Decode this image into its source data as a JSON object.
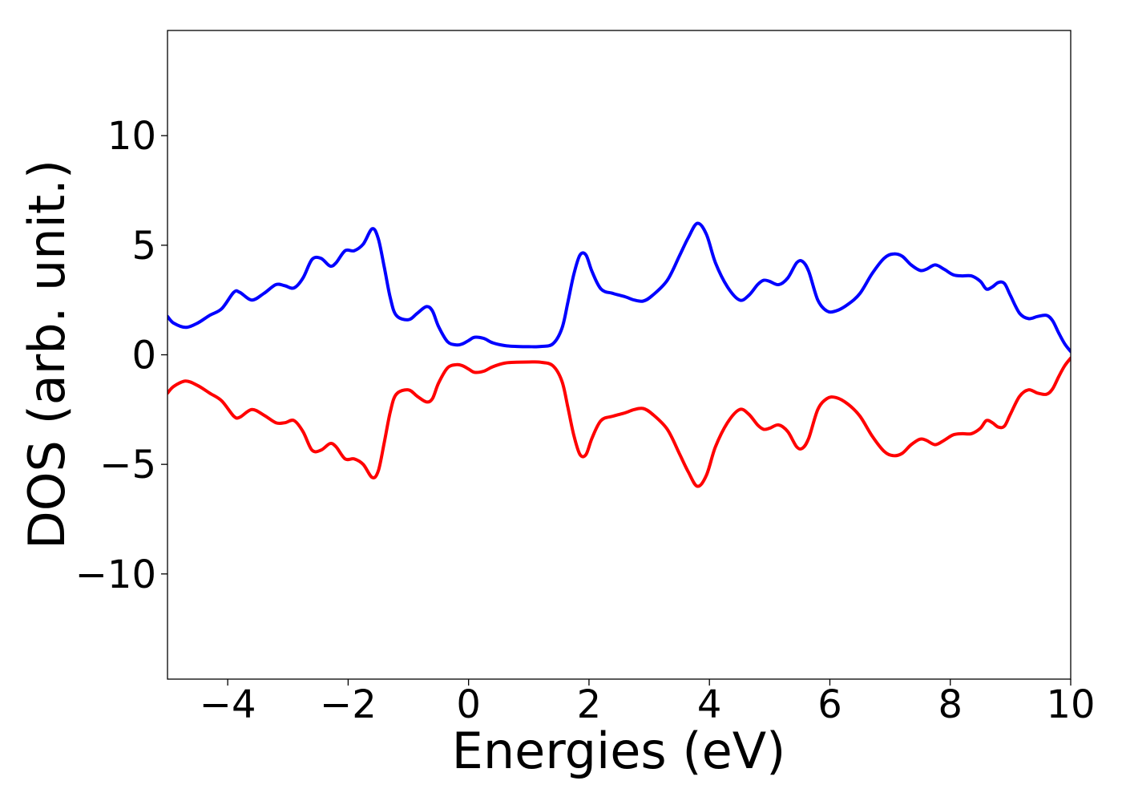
{
  "chart_data": {
    "type": "line",
    "title": "",
    "xlabel": "Energies (eV)",
    "ylabel": "DOS (arb. unit.)",
    "xlim": [
      -5,
      10
    ],
    "ylim": [
      -14.8,
      14.8
    ],
    "xticks": [
      -4,
      -2,
      0,
      2,
      4,
      6,
      8,
      10
    ],
    "xtick_labels": [
      "−4",
      "−2",
      "0",
      "2",
      "4",
      "6",
      "8",
      "10"
    ],
    "yticks": [
      -10,
      -5,
      0,
      5,
      10
    ],
    "ytick_labels": [
      "−10",
      "−5",
      "0",
      "5",
      "10"
    ],
    "grid": false,
    "legend": "none",
    "series": [
      {
        "color": "#0000ff",
        "x": [
          -5.0,
          -4.9,
          -4.7,
          -4.5,
          -4.3,
          -4.1,
          -3.9,
          -3.8,
          -3.6,
          -3.4,
          -3.2,
          -3.05,
          -2.9,
          -2.75,
          -2.6,
          -2.45,
          -2.3,
          -2.2,
          -2.05,
          -1.9,
          -1.75,
          -1.6,
          -1.5,
          -1.4,
          -1.3,
          -1.2,
          -1.0,
          -0.85,
          -0.7,
          -0.6,
          -0.5,
          -0.35,
          -0.2,
          -0.1,
          0.0,
          0.1,
          0.25,
          0.4,
          0.6,
          0.8,
          1.0,
          1.2,
          1.4,
          1.55,
          1.65,
          1.75,
          1.85,
          1.95,
          2.05,
          2.2,
          2.4,
          2.6,
          2.75,
          2.9,
          3.05,
          3.3,
          3.5,
          3.65,
          3.8,
          3.95,
          4.1,
          4.3,
          4.5,
          4.65,
          4.8,
          4.9,
          5.0,
          5.15,
          5.3,
          5.45,
          5.55,
          5.65,
          5.8,
          5.95,
          6.1,
          6.3,
          6.5,
          6.7,
          6.9,
          7.05,
          7.2,
          7.35,
          7.5,
          7.6,
          7.75,
          7.9,
          8.05,
          8.2,
          8.35,
          8.5,
          8.6,
          8.7,
          8.8,
          8.9,
          9.0,
          9.15,
          9.3,
          9.45,
          9.6,
          9.7,
          9.8,
          9.9,
          10.0
        ],
        "y": [
          1.75,
          1.45,
          1.25,
          1.45,
          1.8,
          2.1,
          2.85,
          2.85,
          2.5,
          2.8,
          3.2,
          3.15,
          3.05,
          3.5,
          4.35,
          4.4,
          4.05,
          4.2,
          4.75,
          4.75,
          5.05,
          5.75,
          5.3,
          4.0,
          2.6,
          1.8,
          1.6,
          1.9,
          2.2,
          2.0,
          1.3,
          0.6,
          0.45,
          0.5,
          0.65,
          0.8,
          0.75,
          0.55,
          0.42,
          0.38,
          0.37,
          0.38,
          0.5,
          1.2,
          2.4,
          3.7,
          4.55,
          4.55,
          3.8,
          3.0,
          2.8,
          2.65,
          2.5,
          2.45,
          2.7,
          3.4,
          4.5,
          5.35,
          6.0,
          5.5,
          4.2,
          3.1,
          2.5,
          2.7,
          3.2,
          3.4,
          3.35,
          3.2,
          3.5,
          4.2,
          4.25,
          3.8,
          2.5,
          2.0,
          2.0,
          2.3,
          2.8,
          3.7,
          4.4,
          4.6,
          4.5,
          4.1,
          3.85,
          3.9,
          4.1,
          3.9,
          3.65,
          3.6,
          3.6,
          3.35,
          3.0,
          3.1,
          3.3,
          3.25,
          2.7,
          1.9,
          1.65,
          1.75,
          1.8,
          1.55,
          1.0,
          0.5,
          0.15
        ]
      },
      {
        "color": "#ff0000",
        "x": [
          -5.0,
          -4.9,
          -4.7,
          -4.5,
          -4.3,
          -4.1,
          -3.9,
          -3.8,
          -3.6,
          -3.4,
          -3.2,
          -3.05,
          -2.9,
          -2.75,
          -2.6,
          -2.45,
          -2.3,
          -2.2,
          -2.05,
          -1.9,
          -1.75,
          -1.6,
          -1.5,
          -1.4,
          -1.3,
          -1.2,
          -1.0,
          -0.85,
          -0.7,
          -0.6,
          -0.5,
          -0.35,
          -0.2,
          -0.1,
          0.0,
          0.1,
          0.25,
          0.4,
          0.6,
          0.8,
          1.0,
          1.2,
          1.4,
          1.55,
          1.65,
          1.75,
          1.85,
          1.95,
          2.05,
          2.2,
          2.4,
          2.6,
          2.75,
          2.9,
          3.05,
          3.3,
          3.5,
          3.65,
          3.8,
          3.95,
          4.1,
          4.3,
          4.5,
          4.65,
          4.8,
          4.9,
          5.0,
          5.15,
          5.3,
          5.45,
          5.55,
          5.65,
          5.8,
          5.95,
          6.1,
          6.3,
          6.5,
          6.7,
          6.9,
          7.05,
          7.2,
          7.35,
          7.5,
          7.6,
          7.75,
          7.9,
          8.05,
          8.2,
          8.35,
          8.5,
          8.6,
          8.7,
          8.8,
          8.9,
          9.0,
          9.15,
          9.3,
          9.45,
          9.6,
          9.7,
          9.8,
          9.9,
          10.0
        ],
        "y": [
          -1.75,
          -1.45,
          -1.2,
          -1.4,
          -1.75,
          -2.1,
          -2.8,
          -2.85,
          -2.5,
          -2.75,
          -3.1,
          -3.1,
          -3.0,
          -3.5,
          -4.35,
          -4.35,
          -4.05,
          -4.2,
          -4.75,
          -4.75,
          -5.0,
          -5.6,
          -5.3,
          -4.0,
          -2.6,
          -1.8,
          -1.6,
          -1.9,
          -2.15,
          -2.0,
          -1.3,
          -0.6,
          -0.45,
          -0.5,
          -0.65,
          -0.8,
          -0.75,
          -0.55,
          -0.38,
          -0.34,
          -0.33,
          -0.34,
          -0.5,
          -1.2,
          -2.4,
          -3.7,
          -4.55,
          -4.55,
          -3.8,
          -3.0,
          -2.8,
          -2.65,
          -2.5,
          -2.45,
          -2.7,
          -3.4,
          -4.5,
          -5.35,
          -6.0,
          -5.5,
          -4.2,
          -3.1,
          -2.5,
          -2.7,
          -3.2,
          -3.4,
          -3.35,
          -3.2,
          -3.5,
          -4.2,
          -4.25,
          -3.8,
          -2.5,
          -2.0,
          -1.95,
          -2.25,
          -2.8,
          -3.7,
          -4.4,
          -4.6,
          -4.5,
          -4.1,
          -3.85,
          -3.9,
          -4.1,
          -3.9,
          -3.65,
          -3.6,
          -3.6,
          -3.35,
          -3.0,
          -3.1,
          -3.3,
          -3.25,
          -2.7,
          -1.9,
          -1.6,
          -1.75,
          -1.8,
          -1.55,
          -1.0,
          -0.5,
          -0.15
        ]
      }
    ]
  }
}
